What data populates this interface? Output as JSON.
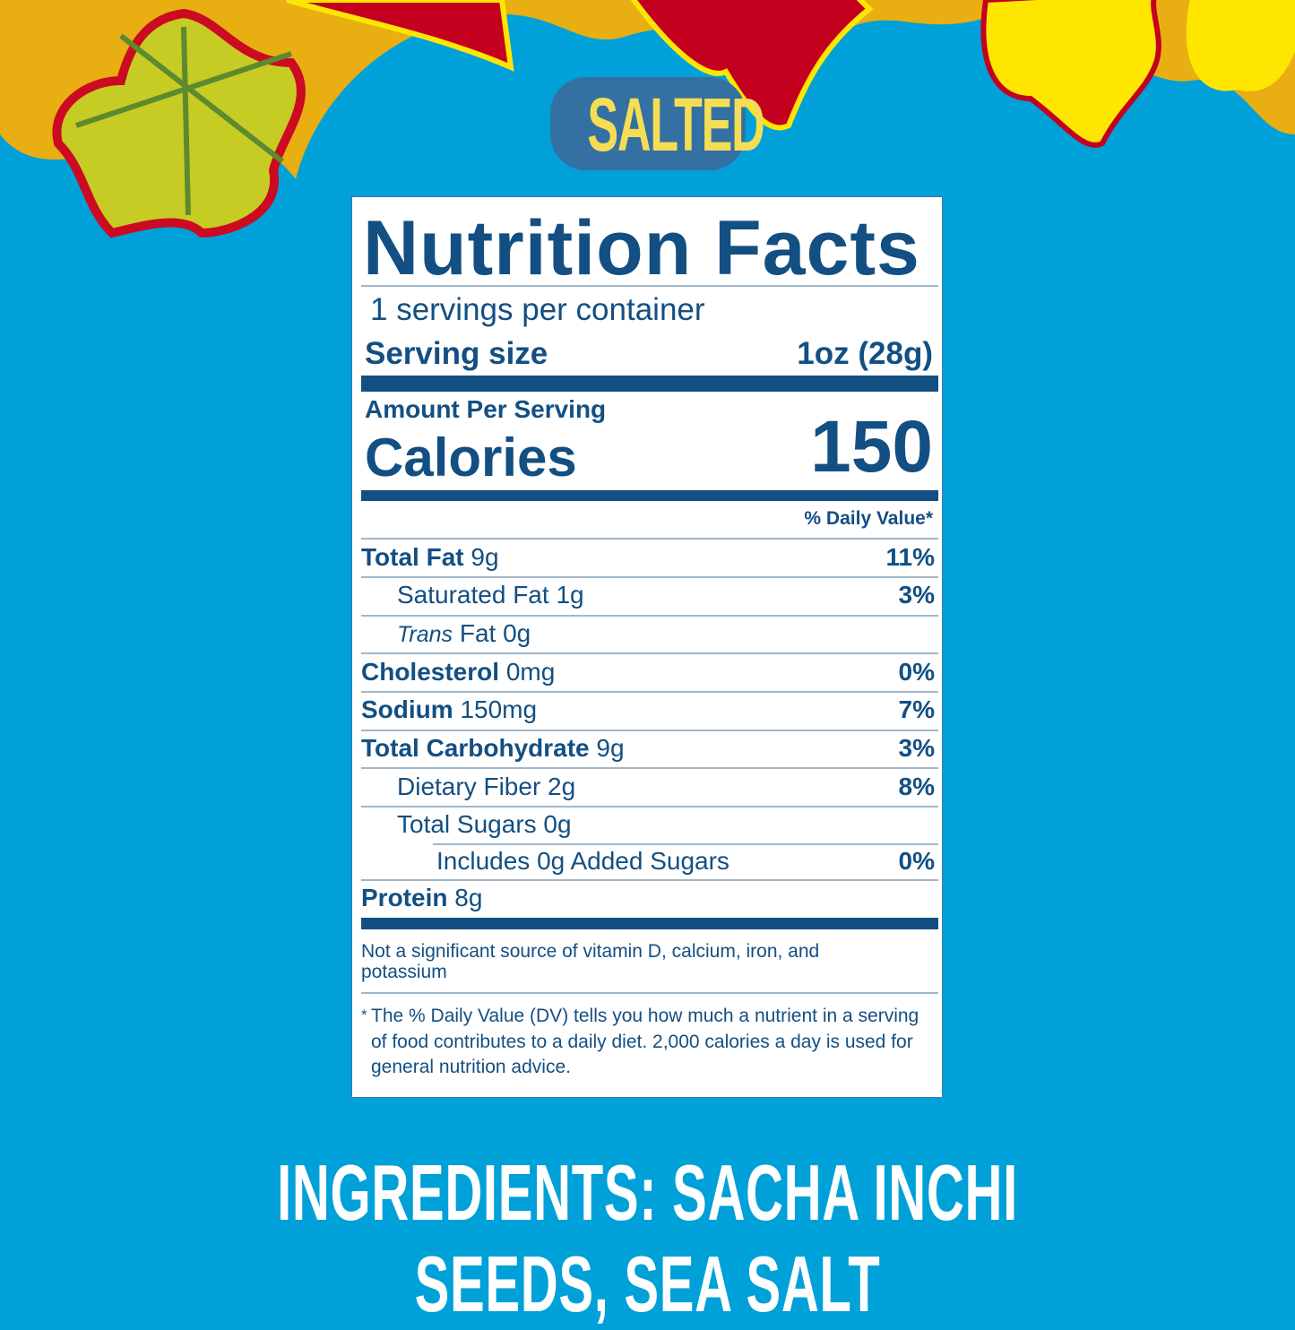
{
  "badge": "SALTED",
  "label": {
    "title": "Nutrition Facts",
    "servings": "1 servings per container",
    "serving_size_label": "Serving size",
    "serving_size_value": "1oz (28g)",
    "amount_per_serving": "Amount Per Serving",
    "calories_label": "Calories",
    "calories_value": "150",
    "daily_value_header": "% Daily Value*",
    "rows": [
      {
        "name": "Total Fat",
        "amount": "9g",
        "dv": "11%"
      },
      {
        "name": "Saturated Fat",
        "amount": "1g",
        "dv": "3%"
      },
      {
        "name_italic": "Trans",
        "name": "Fat",
        "amount": "0g",
        "dv": ""
      },
      {
        "name": "Cholesterol",
        "amount": "0mg",
        "dv": "0%"
      },
      {
        "name": "Sodium",
        "amount": "150mg",
        "dv": "7%"
      },
      {
        "name": "Total Carbohydrate",
        "amount": "9g",
        "dv": "3%"
      },
      {
        "name": "Dietary Fiber",
        "amount": "2g",
        "dv": "8%"
      },
      {
        "name": "Total Sugars",
        "amount": "0g",
        "dv": ""
      },
      {
        "name": "Includes 0g Added Sugars",
        "amount": "",
        "dv": "0%"
      },
      {
        "name": "Protein",
        "amount": "8g",
        "dv": ""
      }
    ],
    "vitamins_note": "Not a significant source of vitamin D, calcium, iron, and potassium",
    "footnote": "The % Daily Value (DV) tells you how much a nutrient in a serving of food contributes to a daily diet. 2,000 calories a day is used for general nutrition advice.",
    "footnote_mark": "*"
  },
  "ingredients": "INGREDIENTS: SACHA INCHI SEEDS, SEA SALT",
  "colors": {
    "background": "#00a0d8",
    "label_text": "#134f82",
    "badge_bg": "#3470a2",
    "badge_text": "#f5dd55"
  }
}
